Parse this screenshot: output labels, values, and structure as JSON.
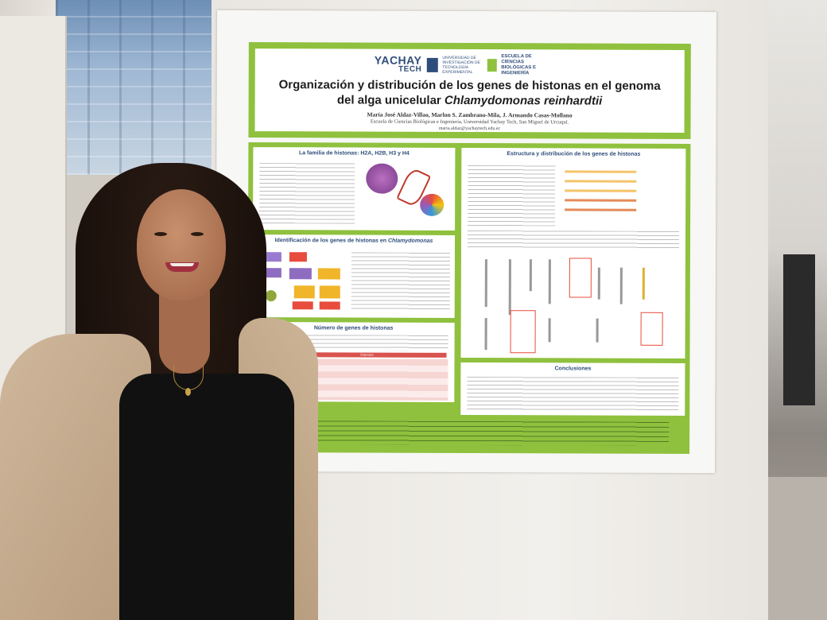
{
  "poster": {
    "brand_name_1": "YACHAY",
    "brand_name_2": "TECH",
    "brand_sub": "UNIVERSIDAD DE INVESTIGACIÓN DE TECNOLOGÍA EXPERIMENTAL",
    "brand_school": "ESCUELA DE CIENCIAS BIOLÓGICAS E INGENIERÍA",
    "title_line1": "Organización y distribución de los genes de histonas en el genoma",
    "title_line2_a": "del alga unicelular ",
    "title_line2_b": "Chlamydomonas reinhardtii",
    "authors": "María José Aldaz-Villao, Marlon S. Zambrano-Mila, J. Armando Casas-Mollano",
    "affiliation": "Escuela de Ciencias Biológicas e Ingeniería, Universidad Yachay Tech, San Miguel de Urcuquí.",
    "email": "maria.aldaz@yachaytech.edu.ec",
    "sections": {
      "familia": "La familia de histonas: H2A, H2B, H3 y H4",
      "identificacion_a": "Identificación de los genes de histonas en ",
      "identificacion_b": "Chlamydomonas",
      "numero": "Número de genes de histonas",
      "estructura": "Estructura y distribución de los genes de histonas",
      "conclusiones": "Conclusiones"
    },
    "table_header": "Especies"
  },
  "colors": {
    "poster_green": "#8fc13e",
    "title_blue": "#2f4d7a",
    "table_red": "#d9534f"
  }
}
